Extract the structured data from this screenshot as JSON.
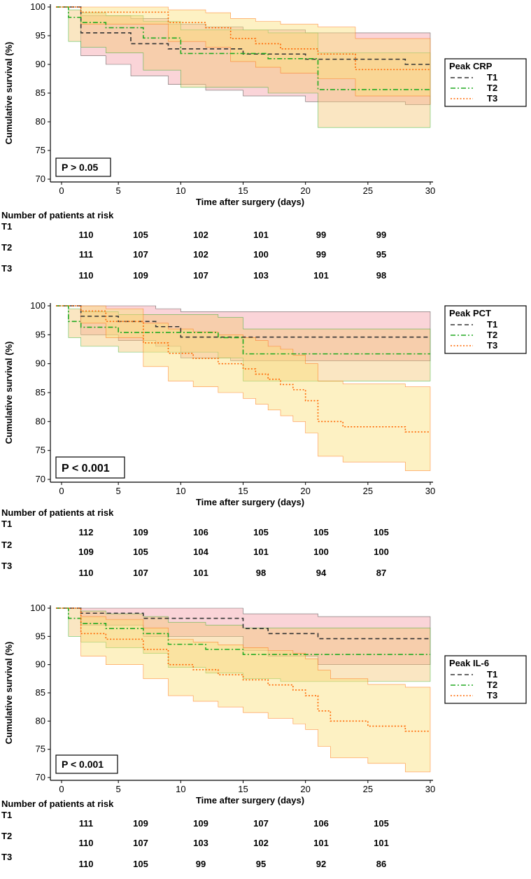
{
  "colors": {
    "T1": "#333333",
    "T2": "#22aa22",
    "T3": "#ff6600",
    "bandT1": "#f5a0a8",
    "bandT2": "#f5c878",
    "bandT3": "#fbe07a"
  },
  "risk_header": "Number of patients at risk",
  "groups": [
    "T1",
    "T2",
    "T3"
  ],
  "chart_data": [
    {
      "type": "line",
      "legend_title": "Peak CRP",
      "p_value": "P > 0.05",
      "xlabel": "Time after surgery (days)",
      "ylabel": "Cumulative survival (%)",
      "xlim": [
        0,
        30
      ],
      "ylim": [
        70,
        100
      ],
      "xticks": [
        0,
        5,
        10,
        15,
        20,
        25,
        30
      ],
      "yticks": [
        70,
        75,
        80,
        85,
        90,
        95,
        100
      ],
      "series": [
        {
          "name": "T1",
          "x": [
            0,
            2,
            4,
            6,
            9,
            12,
            15,
            17,
            20,
            23,
            28,
            30
          ],
          "y": [
            100,
            95.5,
            95.5,
            93.6,
            92.7,
            92.7,
            91.8,
            91.8,
            90.9,
            90.9,
            90.0,
            90.0
          ],
          "lower": [
            100,
            91.5,
            90,
            88,
            86.5,
            85.5,
            84.5,
            84.5,
            83.5,
            83.5,
            83,
            83
          ],
          "upper": [
            100,
            98.5,
            98.5,
            98,
            97,
            96.5,
            96,
            96,
            95.5,
            95.5,
            95.5,
            95.5
          ]
        },
        {
          "name": "T2",
          "x": [
            0,
            1,
            2,
            4,
            7,
            10,
            13,
            17,
            21,
            24,
            30
          ],
          "y": [
            100,
            98.2,
            97.3,
            96.4,
            94.6,
            91.9,
            91.9,
            91.0,
            85.6,
            85.6,
            85.6
          ],
          "lower": [
            100,
            94,
            93,
            92,
            89,
            86,
            86,
            85,
            79,
            79,
            79
          ],
          "upper": [
            100,
            99.5,
            99,
            98.5,
            97.5,
            96,
            96,
            95.5,
            92,
            92,
            92
          ]
        },
        {
          "name": "T3",
          "x": [
            0,
            2,
            6,
            9,
            12,
            14,
            16,
            18,
            21,
            24,
            30
          ],
          "y": [
            100,
            99.1,
            99.1,
            97.3,
            96.4,
            94.5,
            93.6,
            92.7,
            91.8,
            89.1,
            89.1
          ],
          "lower": [
            100,
            97,
            97,
            94,
            93,
            90.5,
            89.5,
            88.5,
            87.5,
            84.5,
            83
          ],
          "upper": [
            100,
            100,
            100,
            99.5,
            99,
            98,
            97.5,
            97,
            96.5,
            94.5,
            94.5
          ]
        }
      ],
      "at_risk": {
        "T1": [
          "110",
          "105",
          "102",
          "101",
          "99",
          "99"
        ],
        "T2": [
          "111",
          "107",
          "102",
          "100",
          "99",
          "95"
        ],
        "T3": [
          "110",
          "109",
          "107",
          "103",
          "101",
          "98"
        ]
      }
    },
    {
      "type": "line",
      "legend_title": "Peak PCT",
      "p_value": "P < 0.001",
      "xlabel": "Time after surgery (days)",
      "ylabel": "Cumulative survival (%)",
      "xlim": [
        0,
        30
      ],
      "ylim": [
        70,
        100
      ],
      "xticks": [
        0,
        5,
        10,
        15,
        20,
        25,
        30
      ],
      "yticks": [
        70,
        75,
        80,
        85,
        90,
        95,
        100
      ],
      "series": [
        {
          "name": "T1",
          "x": [
            0,
            2,
            5,
            8,
            10,
            14,
            17,
            30
          ],
          "y": [
            100,
            98.2,
            97.3,
            96.4,
            94.6,
            94.6,
            94.6,
            94.6
          ],
          "lower": [
            100,
            95,
            94,
            93,
            91,
            90.5,
            90.5,
            90.5
          ],
          "upper": [
            100,
            100,
            100,
            99.5,
            99,
            99,
            99,
            99
          ]
        },
        {
          "name": "T2",
          "x": [
            0,
            1,
            2,
            5,
            8,
            10,
            13,
            15,
            21,
            30
          ],
          "y": [
            100,
            97.3,
            96.3,
            95.4,
            95.4,
            95.4,
            94.5,
            91.7,
            91.7,
            91.7
          ],
          "lower": [
            100,
            94.5,
            93,
            92,
            92,
            92,
            91,
            87,
            87,
            87
          ],
          "upper": [
            100,
            99.5,
            99,
            98.5,
            98.5,
            98.5,
            98,
            96,
            96,
            96
          ]
        },
        {
          "name": "T3",
          "x": [
            0,
            2,
            4,
            7,
            9,
            11,
            13,
            15,
            16,
            17,
            18,
            19,
            20,
            21,
            22,
            23,
            25,
            28,
            30
          ],
          "y": [
            100,
            99.1,
            97.3,
            93.6,
            91.8,
            90.9,
            90.0,
            89.1,
            88.2,
            87.3,
            86.4,
            85.5,
            83.6,
            80.0,
            80.0,
            79.1,
            79.1,
            78.2,
            78.2
          ],
          "lower": [
            100,
            97,
            94.5,
            89.5,
            87,
            86,
            85,
            84,
            83,
            82,
            81,
            80,
            78,
            74,
            74,
            73,
            73,
            71.5,
            71.5
          ],
          "upper": [
            100,
            100,
            99.5,
            97,
            96,
            95.5,
            95,
            94.5,
            94,
            93,
            92.5,
            91.5,
            90,
            87,
            87,
            86.5,
            86.5,
            86,
            86
          ]
        }
      ],
      "at_risk": {
        "T1": [
          "112",
          "109",
          "106",
          "105",
          "105",
          "105"
        ],
        "T2": [
          "109",
          "105",
          "104",
          "101",
          "100",
          "100"
        ],
        "T3": [
          "110",
          "107",
          "101",
          "98",
          "94",
          "87"
        ]
      }
    },
    {
      "type": "line",
      "legend_title": "Peak IL-6",
      "p_value": "P < 0.001",
      "xlabel": "Time after surgery (days)",
      "ylabel": "Cumulative survival (%)",
      "xlim": [
        0,
        30
      ],
      "ylim": [
        70,
        100
      ],
      "xticks": [
        0,
        5,
        10,
        15,
        20,
        25,
        30
      ],
      "yticks": [
        70,
        75,
        80,
        85,
        90,
        95,
        100
      ],
      "series": [
        {
          "name": "T1",
          "x": [
            0,
            2,
            5,
            7,
            15,
            17,
            21,
            30
          ],
          "y": [
            100,
            99.1,
            99.1,
            98.2,
            96.4,
            95.5,
            94.6,
            94.6
          ],
          "lower": [
            100,
            97,
            97,
            95,
            92.5,
            91.5,
            90,
            90
          ],
          "upper": [
            100,
            100,
            100,
            100,
            99,
            99,
            98.5,
            98.5
          ]
        },
        {
          "name": "T2",
          "x": [
            0,
            1,
            2,
            4,
            7,
            9,
            12,
            15,
            18,
            21,
            30
          ],
          "y": [
            100,
            98.2,
            97.3,
            96.4,
            95.5,
            93.6,
            92.7,
            91.8,
            91.8,
            91.8,
            91.8
          ],
          "lower": [
            100,
            95,
            94,
            93,
            92,
            89.5,
            88.5,
            87.5,
            87,
            87,
            87
          ],
          "upper": [
            100,
            100,
            99.5,
            99,
            98.5,
            97.5,
            97,
            96.5,
            96.5,
            96.5,
            96.5
          ]
        },
        {
          "name": "T3",
          "x": [
            0,
            2,
            4,
            7,
            9,
            11,
            13,
            15,
            17,
            19,
            20,
            21,
            22,
            25,
            28,
            30
          ],
          "y": [
            100,
            95.5,
            94.5,
            92.7,
            90.0,
            89.1,
            88.2,
            87.3,
            86.4,
            85.5,
            84.5,
            81.8,
            80.0,
            79.1,
            78.2,
            78.2
          ],
          "lower": [
            100,
            91.5,
            90,
            87.5,
            84.5,
            83.5,
            82.5,
            81.5,
            80.5,
            79.5,
            78.5,
            75.5,
            73.5,
            72.5,
            71,
            71
          ],
          "upper": [
            100,
            98.5,
            98,
            96.5,
            94.5,
            94,
            93.5,
            93,
            92.5,
            92,
            91,
            89,
            87.5,
            86.5,
            86,
            86
          ]
        }
      ],
      "at_risk": {
        "T1": [
          "111",
          "109",
          "109",
          "107",
          "106",
          "105"
        ],
        "T2": [
          "110",
          "107",
          "103",
          "102",
          "101",
          "101"
        ],
        "T3": [
          "110",
          "105",
          "99",
          "95",
          "92",
          "86"
        ]
      }
    }
  ]
}
